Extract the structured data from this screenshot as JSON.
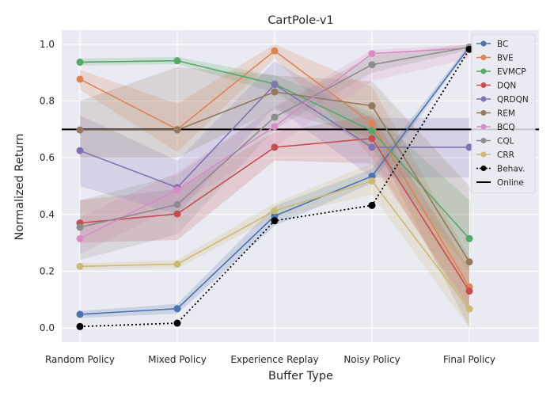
{
  "chart_data": {
    "type": "line",
    "title": "CartPole-v1",
    "xlabel": "Buffer Type",
    "ylabel": "Normalized Return",
    "categories": [
      "Random Policy",
      "Mixed Policy",
      "Experience Replay",
      "Noisy Policy",
      "Final Policy"
    ],
    "ylim": [
      -0.05,
      1.05
    ],
    "yticks": [
      0.0,
      0.2,
      0.4,
      0.6,
      0.8,
      1.0
    ],
    "ytick_labels": [
      "0.0",
      "0.2",
      "0.4",
      "0.6",
      "0.8",
      "1.0"
    ],
    "grid": true,
    "legend_position": "right",
    "series": [
      {
        "name": "BC",
        "color": "#4c72b0",
        "values": [
          0.048,
          0.068,
          0.395,
          0.535,
          0.99
        ],
        "lower": [
          0.035,
          0.05,
          0.36,
          0.51,
          0.985
        ],
        "upper": [
          0.06,
          0.085,
          0.43,
          0.56,
          1.0
        ]
      },
      {
        "name": "BVE",
        "color": "#dd8452",
        "values": [
          0.877,
          0.7,
          0.977,
          0.72,
          0.145
        ],
        "lower": [
          0.84,
          0.62,
          0.95,
          0.6,
          0.05
        ],
        "upper": [
          0.91,
          0.79,
          1.0,
          0.85,
          0.25
        ]
      },
      {
        "name": "EVMCP",
        "color": "#55a868",
        "values": [
          0.937,
          0.942,
          0.86,
          0.695,
          0.315
        ],
        "lower": [
          0.925,
          0.93,
          0.83,
          0.63,
          0.2
        ],
        "upper": [
          0.95,
          0.955,
          0.89,
          0.76,
          0.45
        ]
      },
      {
        "name": "DQN",
        "color": "#c44e52",
        "values": [
          0.37,
          0.402,
          0.637,
          0.668,
          0.13
        ],
        "lower": [
          0.3,
          0.31,
          0.59,
          0.58,
          0.07
        ],
        "upper": [
          0.45,
          0.49,
          0.69,
          0.75,
          0.21
        ]
      },
      {
        "name": "QRDQN",
        "color": "#8172b3",
        "values": [
          0.625,
          0.495,
          0.858,
          0.637,
          0.637
        ],
        "lower": [
          0.5,
          0.4,
          0.78,
          0.53,
          0.53
        ],
        "upper": [
          0.75,
          0.59,
          0.94,
          0.74,
          0.74
        ]
      },
      {
        "name": "REM",
        "color": "#937860",
        "values": [
          0.698,
          0.698,
          0.832,
          0.783,
          0.233
        ],
        "lower": [
          0.6,
          0.6,
          0.77,
          0.67,
          0.0
        ],
        "upper": [
          0.8,
          0.92,
          0.89,
          0.87,
          0.5
        ]
      },
      {
        "name": "BCQ",
        "color": "#da8bc3",
        "values": [
          0.315,
          0.487,
          0.71,
          0.967,
          0.987
        ],
        "lower": [
          0.26,
          0.43,
          0.64,
          0.87,
          0.95
        ],
        "upper": [
          0.39,
          0.55,
          0.78,
          0.98,
          1.0
        ]
      },
      {
        "name": "CQL",
        "color": "#8c8c8c",
        "values": [
          0.355,
          0.435,
          0.743,
          0.928,
          0.99
        ],
        "lower": [
          0.24,
          0.33,
          0.7,
          0.9,
          0.98
        ],
        "upper": [
          0.45,
          0.54,
          0.78,
          0.96,
          1.0
        ]
      },
      {
        "name": "CRR",
        "color": "#ccb974",
        "values": [
          0.217,
          0.225,
          0.413,
          0.518,
          0.067
        ],
        "lower": [
          0.205,
          0.21,
          0.39,
          0.47,
          0.0
        ],
        "upper": [
          0.228,
          0.24,
          0.44,
          0.58,
          0.24
        ]
      },
      {
        "name": "Behav.",
        "color": "#000000",
        "dashed": true,
        "values": [
          0.005,
          0.017,
          0.378,
          0.432,
          0.982
        ]
      }
    ],
    "reference_line": {
      "name": "Online",
      "color": "#000000",
      "value": 0.7
    }
  }
}
